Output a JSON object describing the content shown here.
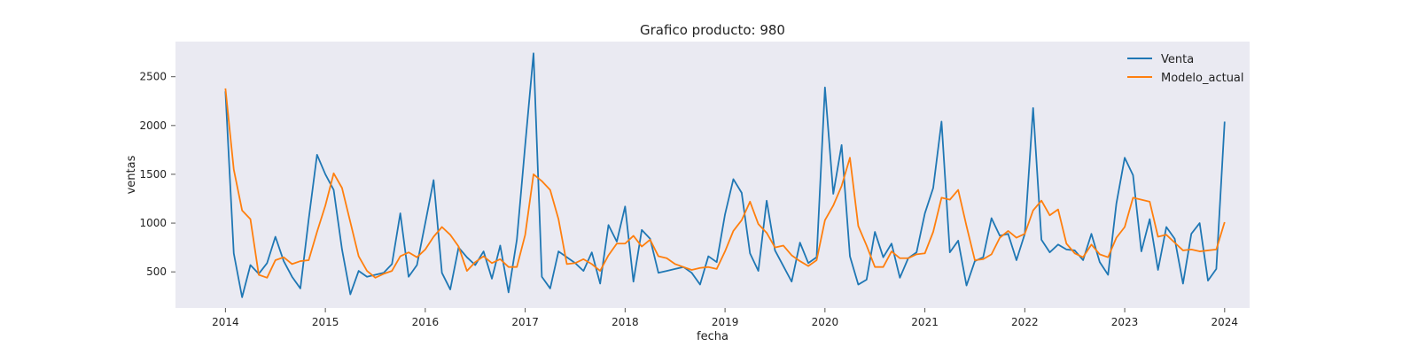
{
  "chart_data": {
    "type": "line",
    "title": "Grafico producto: 980",
    "xlabel": "fecha",
    "ylabel": "ventas",
    "x_axis": "date",
    "x_start": "2014-01",
    "x_frequency": "monthly",
    "xlim": [
      "2013-07",
      "2024-04"
    ],
    "ylim": [
      130,
      2860
    ],
    "xticks": [
      "2014",
      "2015",
      "2016",
      "2017",
      "2018",
      "2019",
      "2020",
      "2021",
      "2022",
      "2023",
      "2024"
    ],
    "yticks": [
      500,
      1000,
      1500,
      2000,
      2500
    ],
    "grid": false,
    "background": "#eaeaf2",
    "legend_position": "top-right",
    "series": [
      {
        "name": "Venta",
        "color": "#1f77b4",
        "values": [
          2350,
          690,
          240,
          570,
          480,
          590,
          860,
          610,
          450,
          330,
          1040,
          1700,
          1500,
          1340,
          730,
          270,
          510,
          450,
          470,
          490,
          580,
          1100,
          450,
          570,
          1000,
          1440,
          490,
          320,
          750,
          650,
          570,
          710,
          430,
          770,
          290,
          830,
          1800,
          2740,
          450,
          330,
          710,
          650,
          590,
          510,
          700,
          380,
          980,
          810,
          1170,
          400,
          930,
          840,
          490,
          510,
          530,
          550,
          490,
          370,
          660,
          600,
          1090,
          1450,
          1310,
          690,
          510,
          1230,
          720,
          560,
          400,
          800,
          590,
          650,
          2390,
          1300,
          1800,
          660,
          370,
          420,
          910,
          650,
          790,
          440,
          640,
          700,
          1100,
          1360,
          2040,
          700,
          820,
          360,
          610,
          650,
          1050,
          870,
          890,
          620,
          890,
          2180,
          830,
          700,
          780,
          730,
          720,
          620,
          890,
          600,
          470,
          1200,
          1670,
          1490,
          710,
          1040,
          520,
          960,
          840,
          380,
          890,
          1000,
          410,
          530,
          2040
        ]
      },
      {
        "name": "Modelo_actual",
        "color": "#ff7f0e",
        "values": [
          2380,
          1550,
          1130,
          1040,
          470,
          440,
          620,
          650,
          580,
          610,
          620,
          910,
          1180,
          1510,
          1360,
          1010,
          660,
          510,
          440,
          480,
          510,
          660,
          700,
          650,
          730,
          860,
          960,
          880,
          760,
          510,
          600,
          660,
          590,
          630,
          550,
          550,
          880,
          1500,
          1430,
          1340,
          1040,
          580,
          590,
          630,
          580,
          510,
          670,
          790,
          790,
          870,
          760,
          830,
          660,
          640,
          580,
          550,
          520,
          540,
          550,
          530,
          710,
          920,
          1030,
          1220,
          990,
          900,
          750,
          770,
          670,
          610,
          560,
          620,
          1030,
          1180,
          1380,
          1670,
          970,
          770,
          550,
          550,
          710,
          640,
          640,
          680,
          690,
          910,
          1260,
          1240,
          1340,
          970,
          620,
          630,
          680,
          850,
          920,
          850,
          890,
          1130,
          1230,
          1080,
          1140,
          790,
          690,
          650,
          780,
          680,
          650,
          850,
          960,
          1260,
          1240,
          1220,
          860,
          880,
          800,
          720,
          730,
          710,
          720,
          730,
          1010
        ]
      }
    ]
  }
}
